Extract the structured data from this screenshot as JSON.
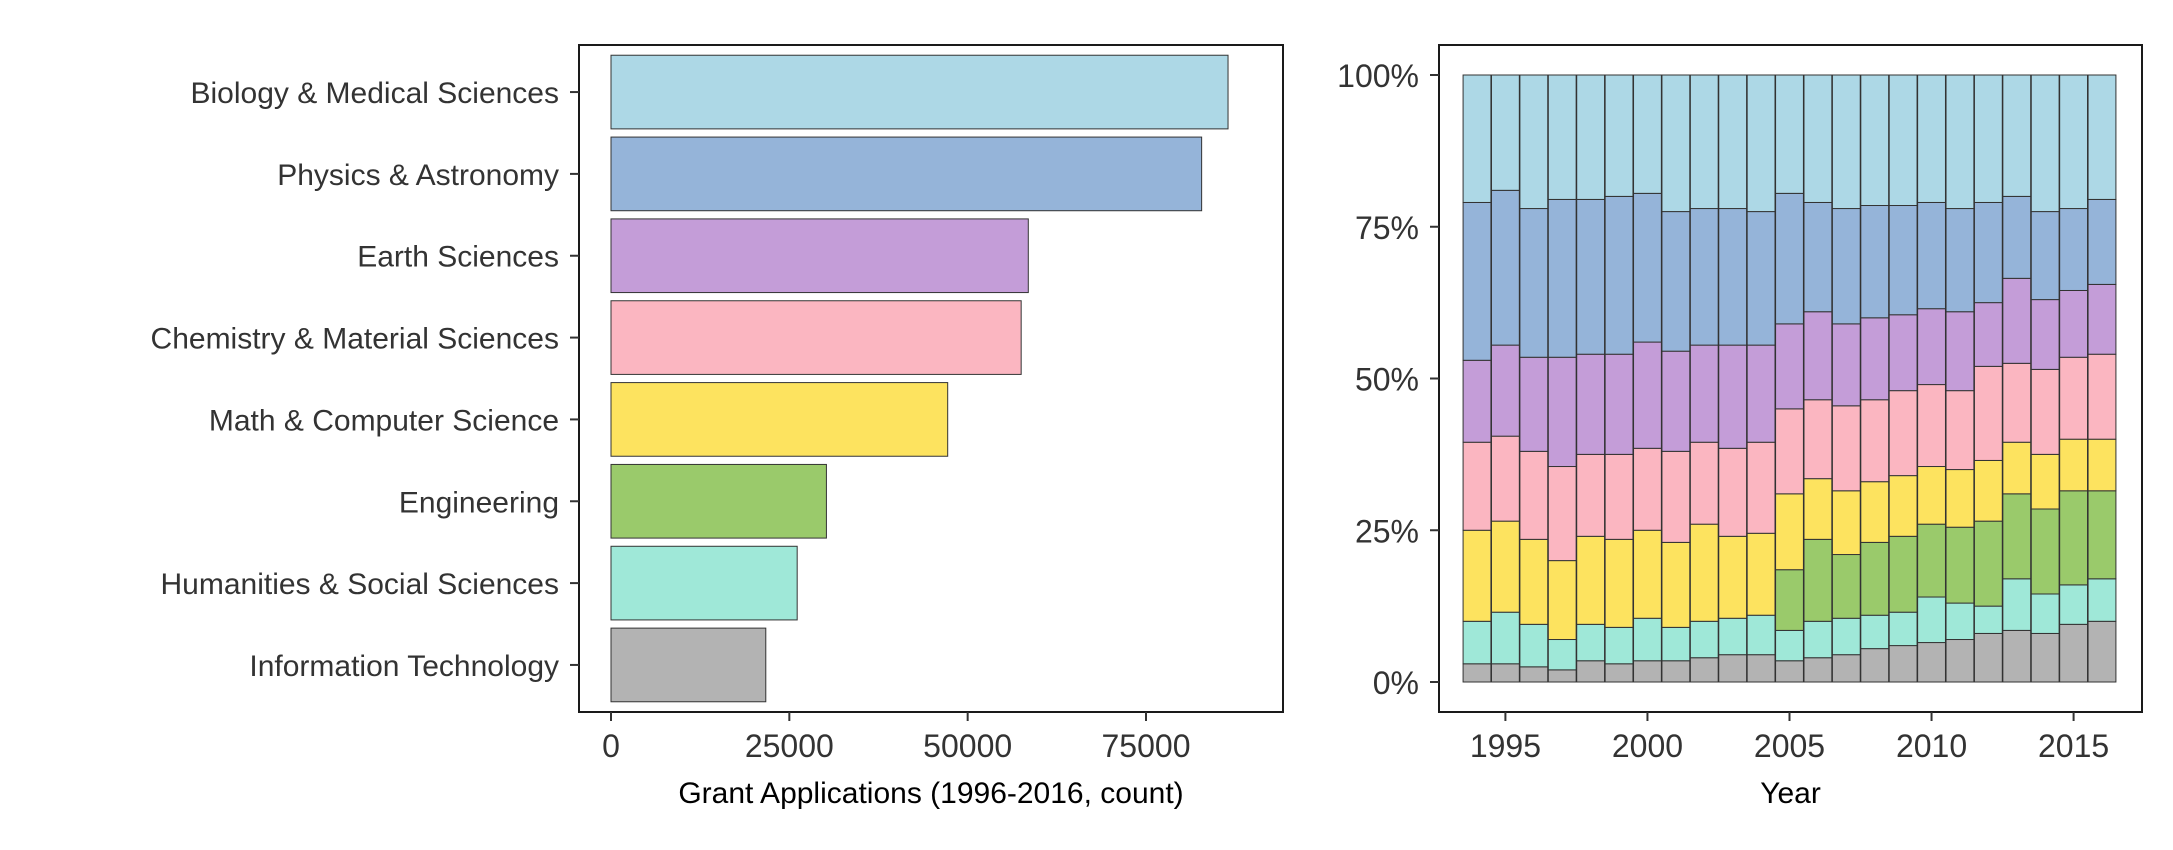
{
  "chart_data": [
    {
      "type": "bar",
      "orientation": "horizontal",
      "categories": [
        "Biology & Medical Sciences",
        "Physics & Astronomy",
        "Earth Sciences",
        "Chemistry & Material Sciences",
        "Math & Computer Science",
        "Engineering",
        "Humanities & Social Sciences",
        "Information Technology"
      ],
      "values": [
        86500,
        82800,
        58500,
        57500,
        47200,
        30200,
        26100,
        21700
      ],
      "colors": [
        "#add8e6",
        "#95b4d9",
        "#c49dd8",
        "#fbb6c1",
        "#fde35f",
        "#9aca6b",
        "#9fe8d8",
        "#b3b3b3"
      ],
      "xlabel": "Grant Applications (1996-2016, count)",
      "ylabel": "",
      "xlim": [
        0,
        90000
      ],
      "xticks": [
        "0",
        "25000",
        "50000",
        "75000"
      ],
      "grid": false
    },
    {
      "type": "bar",
      "stacked": true,
      "percent": true,
      "xlabel": "Year",
      "ylabel": "",
      "ylim": [
        0,
        1
      ],
      "yticks": [
        "0%",
        "25%",
        "50%",
        "75%",
        "100%"
      ],
      "xticks": [
        "1995",
        "2000",
        "2005",
        "2010",
        "2015"
      ],
      "grid": false,
      "categories": [
        1994,
        1995,
        1996,
        1997,
        1998,
        1999,
        2000,
        2001,
        2002,
        2003,
        2004,
        2005,
        2006,
        2007,
        2008,
        2009,
        2010,
        2011,
        2012,
        2013,
        2014,
        2015,
        2016
      ],
      "series": [
        {
          "name": "Information Technology",
          "color": "#b3b3b3",
          "values": [
            0.03,
            0.03,
            0.025,
            0.02,
            0.035,
            0.03,
            0.035,
            0.035,
            0.04,
            0.045,
            0.045,
            0.035,
            0.04,
            0.045,
            0.055,
            0.06,
            0.065,
            0.07,
            0.08,
            0.085,
            0.08,
            0.095,
            0.1
          ]
        },
        {
          "name": "Humanities & Social Sciences",
          "color": "#9fe8d8",
          "values": [
            0.07,
            0.085,
            0.07,
            0.05,
            0.06,
            0.06,
            0.07,
            0.055,
            0.06,
            0.06,
            0.065,
            0.05,
            0.06,
            0.06,
            0.055,
            0.055,
            0.075,
            0.06,
            0.045,
            0.085,
            0.065,
            0.065,
            0.07
          ]
        },
        {
          "name": "Engineering",
          "color": "#9aca6b",
          "values": [
            0,
            0,
            0,
            0,
            0,
            0,
            0,
            0,
            0,
            0,
            0,
            0.1,
            0.135,
            0.105,
            0.12,
            0.125,
            0.12,
            0.125,
            0.14,
            0.14,
            0.14,
            0.155,
            0.145
          ]
        },
        {
          "name": "Math & Computer Science",
          "color": "#fde35f",
          "values": [
            0.15,
            0.15,
            0.14,
            0.13,
            0.145,
            0.145,
            0.145,
            0.14,
            0.16,
            0.135,
            0.135,
            0.125,
            0.1,
            0.105,
            0.1,
            0.1,
            0.095,
            0.095,
            0.1,
            0.085,
            0.09,
            0.085,
            0.085
          ]
        },
        {
          "name": "Chemistry & Material Sciences",
          "color": "#fbb6c1",
          "values": [
            0.145,
            0.14,
            0.145,
            0.155,
            0.135,
            0.14,
            0.135,
            0.15,
            0.135,
            0.145,
            0.15,
            0.14,
            0.13,
            0.14,
            0.135,
            0.14,
            0.135,
            0.13,
            0.155,
            0.13,
            0.14,
            0.135,
            0.14
          ]
        },
        {
          "name": "Earth Sciences",
          "color": "#c49dd8",
          "values": [
            0.135,
            0.15,
            0.155,
            0.18,
            0.165,
            0.165,
            0.175,
            0.165,
            0.16,
            0.17,
            0.16,
            0.14,
            0.145,
            0.135,
            0.135,
            0.125,
            0.125,
            0.13,
            0.105,
            0.14,
            0.115,
            0.11,
            0.115
          ]
        },
        {
          "name": "Physics & Astronomy",
          "color": "#95b4d9",
          "values": [
            0.26,
            0.255,
            0.245,
            0.26,
            0.255,
            0.26,
            0.245,
            0.23,
            0.225,
            0.225,
            0.22,
            0.215,
            0.18,
            0.19,
            0.185,
            0.18,
            0.175,
            0.17,
            0.165,
            0.135,
            0.145,
            0.135,
            0.14
          ]
        },
        {
          "name": "Biology & Medical Sciences",
          "color": "#add8e6",
          "values": [
            0.21,
            0.19,
            0.22,
            0.205,
            0.205,
            0.2,
            0.195,
            0.225,
            0.22,
            0.22,
            0.225,
            0.195,
            0.21,
            0.22,
            0.215,
            0.215,
            0.21,
            0.22,
            0.21,
            0.2,
            0.225,
            0.22,
            0.205
          ]
        }
      ]
    }
  ]
}
